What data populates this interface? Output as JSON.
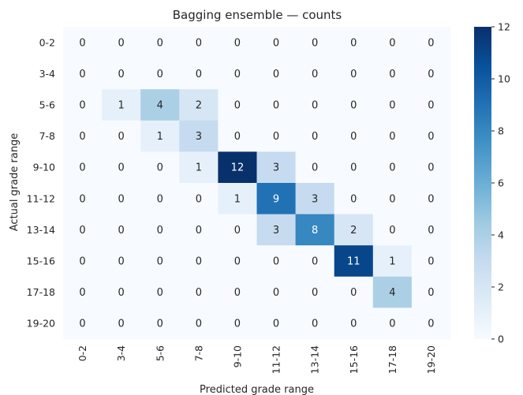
{
  "chart_data": {
    "type": "heatmap",
    "title": "Bagging ensemble — counts",
    "xlabel": "Predicted grade range",
    "ylabel": "Actual grade range",
    "x_categories": [
      "0-2",
      "3-4",
      "5-6",
      "7-8",
      "9-10",
      "11-12",
      "13-14",
      "15-16",
      "17-18",
      "19-20"
    ],
    "y_categories": [
      "0-2",
      "3-4",
      "5-6",
      "7-8",
      "9-10",
      "11-12",
      "13-14",
      "15-16",
      "17-18",
      "19-20"
    ],
    "values": [
      [
        0,
        0,
        0,
        0,
        0,
        0,
        0,
        0,
        0,
        0
      ],
      [
        0,
        0,
        0,
        0,
        0,
        0,
        0,
        0,
        0,
        0
      ],
      [
        0,
        1,
        4,
        2,
        0,
        0,
        0,
        0,
        0,
        0
      ],
      [
        0,
        0,
        1,
        3,
        0,
        0,
        0,
        0,
        0,
        0
      ],
      [
        0,
        0,
        0,
        1,
        12,
        3,
        0,
        0,
        0,
        0
      ],
      [
        0,
        0,
        0,
        0,
        1,
        9,
        3,
        0,
        0,
        0
      ],
      [
        0,
        0,
        0,
        0,
        0,
        3,
        8,
        2,
        0,
        0
      ],
      [
        0,
        0,
        0,
        0,
        0,
        0,
        0,
        11,
        1,
        0
      ],
      [
        0,
        0,
        0,
        0,
        0,
        0,
        0,
        0,
        4,
        0
      ],
      [
        0,
        0,
        0,
        0,
        0,
        0,
        0,
        0,
        0,
        0
      ]
    ],
    "colorbar": {
      "min": 0,
      "max": 12,
      "ticks": [
        0,
        2,
        4,
        6,
        8,
        10,
        12
      ],
      "colormap": "Blues"
    },
    "grid": false
  }
}
